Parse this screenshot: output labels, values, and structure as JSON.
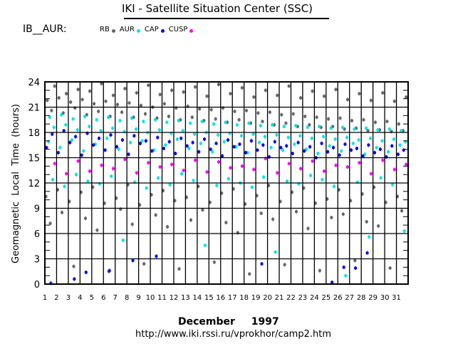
{
  "header": {
    "title": "IKI - Satellite Situation Center (SSC)",
    "station": "IB__AUR:",
    "month": "December",
    "year": "1997",
    "url": "http://www.iki.rssi.ru/vprokhor/camp2.htm"
  },
  "legend": [
    {
      "label": "RB",
      "color": "#666666"
    },
    {
      "label": "AUR",
      "color": "#00e5e5"
    },
    {
      "label": "CAP",
      "color": "#0000ee"
    },
    {
      "label": "CUSP",
      "color": "#ff00ff"
    }
  ],
  "chart_data": {
    "type": "scatter",
    "title": "IKI - Satellite Situation Center (SSC)",
    "xlabel": "December    1997",
    "ylabel": "Geomagnetic  Local  Time  (hours)",
    "xlim": [
      1,
      32
    ],
    "ylim": [
      0,
      24
    ],
    "x_ticks": [
      1,
      2,
      3,
      4,
      5,
      6,
      7,
      8,
      9,
      10,
      11,
      12,
      13,
      14,
      15,
      16,
      17,
      18,
      19,
      20,
      21,
      22,
      23,
      24,
      25,
      26,
      27,
      28,
      29,
      30,
      31
    ],
    "y_ticks": [
      0,
      3,
      6,
      9,
      12,
      15,
      18,
      21,
      24
    ],
    "grid": true,
    "series": [
      {
        "name": "RB",
        "color": "#666666",
        "hours_by_day": [
          [
            21.8,
            20.6,
            10.4,
            7.2,
            23.5
          ],
          [
            22.1,
            20.3,
            11.2,
            8.5,
            22.6
          ],
          [
            21.6,
            20.9,
            9.8,
            2.1,
            23.1
          ],
          [
            21.9,
            20.1,
            10.9,
            7.8,
            22.9
          ],
          [
            21.4,
            20.5,
            11.5,
            6.4,
            23.8
          ],
          [
            21.7,
            19.9,
            9.6,
            1.5,
            22.4
          ],
          [
            21.3,
            20.4,
            10.2,
            8.9,
            23.2
          ],
          [
            21.5,
            19.8,
            11.8,
            7.1,
            22.7
          ],
          [
            21.2,
            20.2,
            9.4,
            2.4,
            23.6
          ],
          [
            21.0,
            19.7,
            10.6,
            8.2,
            22.5
          ],
          [
            21.4,
            19.9,
            11.1,
            6.8,
            23.0
          ],
          [
            20.9,
            19.5,
            9.9,
            1.8,
            22.8
          ],
          [
            21.1,
            19.8,
            10.3,
            7.6,
            23.4
          ],
          [
            20.8,
            19.4,
            11.6,
            8.8,
            22.3
          ],
          [
            20.7,
            19.6,
            9.7,
            2.6,
            23.7
          ],
          [
            20.9,
            19.2,
            10.8,
            7.3,
            22.6
          ],
          [
            20.5,
            19.5,
            11.3,
            6.1,
            23.3
          ],
          [
            20.6,
            19.1,
            9.5,
            1.2,
            22.2
          ],
          [
            20.3,
            19.3,
            10.5,
            8.4,
            23.0
          ],
          [
            20.4,
            18.9,
            11.7,
            7.7,
            22.4
          ],
          [
            20.1,
            19.1,
            9.8,
            2.3,
            23.5
          ],
          [
            20.2,
            18.7,
            10.9,
            8.6,
            22.1
          ],
          [
            19.9,
            18.9,
            11.4,
            6.6,
            22.9
          ],
          [
            19.8,
            18.6,
            9.6,
            1.6,
            22.3
          ],
          [
            19.6,
            18.7,
            10.1,
            7.9,
            23.1
          ],
          [
            19.7,
            18.4,
            11.2,
            8.3,
            21.9
          ],
          [
            19.4,
            18.5,
            9.9,
            2.8,
            22.6
          ],
          [
            19.5,
            18.2,
            10.7,
            7.4,
            21.8
          ],
          [
            19.2,
            18.3,
            11.5,
            6.9,
            22.7
          ],
          [
            19.3,
            18.1,
            9.7,
            1.9,
            21.7
          ],
          [
            19.0,
            18.2,
            10.4,
            8.7,
            22.2
          ]
        ]
      },
      {
        "name": "AUR",
        "color": "#00e5e5",
        "hours_by_day": [
          [
            19.8,
            18.6,
            16.9,
            12.4
          ],
          [
            20.1,
            18.9,
            16.2,
            11.6
          ],
          [
            19.6,
            18.3,
            17.1,
            13.0
          ],
          [
            19.9,
            18.7,
            15.8,
            12.2
          ],
          [
            19.5,
            18.2,
            16.6,
            11.9
          ],
          [
            19.8,
            18.5,
            17.3,
            12.8
          ],
          [
            19.4,
            18.1,
            16.0,
            5.2
          ],
          [
            19.7,
            18.4,
            16.8,
            12.1
          ],
          [
            19.3,
            18.0,
            17.0,
            11.4
          ],
          [
            19.5,
            18.3,
            15.9,
            12.6
          ],
          [
            19.2,
            17.9,
            16.5,
            11.8
          ],
          [
            19.4,
            18.2,
            17.2,
            13.1
          ],
          [
            19.1,
            17.8,
            16.1,
            12.3
          ],
          [
            19.3,
            18.0,
            16.7,
            4.6
          ],
          [
            19.0,
            17.7,
            15.7,
            11.7
          ],
          [
            19.2,
            17.9,
            16.9,
            12.5
          ],
          [
            18.9,
            17.6,
            16.3,
            12.0
          ],
          [
            19.1,
            17.8,
            15.6,
            11.5
          ],
          [
            18.8,
            17.5,
            16.8,
            12.7
          ],
          [
            18.9,
            17.7,
            16.2,
            3.8
          ],
          [
            18.7,
            17.4,
            15.9,
            12.2
          ],
          [
            18.8,
            17.6,
            16.6,
            11.9
          ],
          [
            18.6,
            17.3,
            16.0,
            12.9
          ],
          [
            18.7,
            17.5,
            15.5,
            12.4
          ],
          [
            18.5,
            17.2,
            16.4,
            11.6
          ],
          [
            18.6,
            17.4,
            15.8,
            1.0
          ],
          [
            18.4,
            17.1,
            16.7,
            12.1
          ],
          [
            18.5,
            17.3,
            15.4,
            5.6
          ],
          [
            18.3,
            17.0,
            16.2,
            12.6
          ],
          [
            18.4,
            17.2,
            15.7,
            11.8
          ],
          [
            18.2,
            16.9,
            16.5,
            6.3
          ]
        ]
      },
      {
        "name": "CAP",
        "color": "#0000ee",
        "hours_by_day": [
          [
            17.8,
            16.2,
            0.1
          ],
          [
            18.2,
            15.6
          ],
          [
            17.5,
            16.8,
            0.6
          ],
          [
            17.9,
            15.3,
            1.4
          ],
          [
            17.3,
            16.5
          ],
          [
            17.7,
            15.9,
            1.6
          ],
          [
            17.1,
            16.3
          ],
          [
            17.6,
            15.4,
            2.8
          ],
          [
            17.0,
            16.7
          ],
          [
            17.4,
            15.8,
            3.3
          ],
          [
            16.9,
            16.1
          ],
          [
            17.3,
            15.5
          ],
          [
            16.8,
            16.4
          ],
          [
            17.2,
            15.7
          ],
          [
            16.7,
            16.0
          ],
          [
            17.1,
            15.2
          ],
          [
            16.6,
            16.3
          ],
          [
            17.0,
            15.6
          ],
          [
            16.5,
            15.9,
            2.4
          ],
          [
            16.9,
            15.1
          ],
          [
            16.4,
            16.2
          ],
          [
            16.8,
            15.5
          ],
          [
            16.3,
            15.8
          ],
          [
            16.7,
            15.0
          ],
          [
            16.2,
            15.7,
            0.2
          ],
          [
            16.6,
            15.3,
            2.0
          ],
          [
            16.1,
            15.9,
            1.9
          ],
          [
            16.5,
            15.2,
            3.7
          ],
          [
            16.0,
            15.6
          ],
          [
            16.4,
            15.1
          ],
          [
            15.9,
            15.4
          ]
        ]
      },
      {
        "name": "CUSP",
        "color": "#ff00ff",
        "hours_by_day": [
          [
            14.3
          ],
          [
            13.1
          ],
          [
            14.6
          ],
          [
            13.4
          ],
          [
            14.1
          ],
          [
            13.7
          ],
          [
            14.8
          ],
          [
            13.2
          ],
          [
            14.4
          ],
          [
            13.9
          ],
          [
            14.2
          ],
          [
            13.5
          ],
          [
            14.7
          ],
          [
            13.3
          ],
          [
            14.5
          ],
          [
            13.8
          ],
          [
            14.0
          ],
          [
            13.6
          ],
          [
            14.9
          ],
          [
            13.2
          ],
          [
            14.3
          ],
          [
            13.7
          ],
          [
            14.6
          ],
          [
            13.4
          ],
          [
            14.1
          ],
          [
            13.9
          ],
          [
            14.4
          ],
          [
            13.1
          ],
          [
            14.7
          ],
          [
            13.6
          ],
          [
            14.2
          ]
        ]
      }
    ]
  }
}
